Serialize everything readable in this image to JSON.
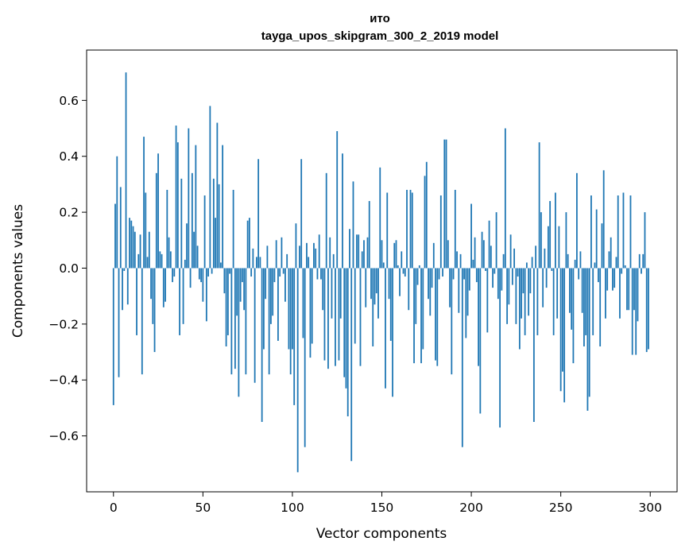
{
  "chart_data": {
    "type": "bar",
    "title": "ито",
    "subtitle": "tayga_upos_skipgram_300_2_2019 model",
    "xlabel": "Vector components",
    "ylabel": "Components values",
    "xlim": [
      -15,
      315
    ],
    "ylim": [
      -0.8,
      0.78
    ],
    "xticks": [
      0,
      50,
      100,
      150,
      200,
      250,
      300
    ],
    "xtick_labels": [
      "0",
      "50",
      "100",
      "150",
      "200",
      "250",
      "300"
    ],
    "yticks": [
      -0.6,
      -0.4,
      -0.2,
      0.0,
      0.2,
      0.4,
      0.6
    ],
    "ytick_labels": [
      "−0.6",
      "−0.4",
      "−0.2",
      "0.0",
      "0.2",
      "0.4",
      "0.6"
    ],
    "bar_color": "#1f77b4",
    "x": "0..299",
    "values": [
      -0.49,
      0.23,
      0.4,
      -0.39,
      0.29,
      -0.15,
      -0.01,
      0.7,
      -0.13,
      0.18,
      0.17,
      0.15,
      0.13,
      -0.24,
      0.05,
      0.12,
      -0.38,
      0.47,
      0.27,
      0.04,
      0.13,
      -0.11,
      -0.2,
      -0.3,
      0.34,
      0.41,
      0.06,
      0.05,
      -0.14,
      -0.12,
      0.28,
      0.11,
      0.06,
      -0.05,
      -0.03,
      0.51,
      0.45,
      -0.24,
      0.32,
      -0.2,
      0.03,
      0.16,
      0.5,
      -0.07,
      0.34,
      0.13,
      0.44,
      0.08,
      -0.04,
      -0.05,
      -0.12,
      0.26,
      -0.19,
      -0.03,
      0.58,
      -0.02,
      0.32,
      0.18,
      0.52,
      0.3,
      0.02,
      0.44,
      -0.09,
      -0.28,
      -0.24,
      -0.02,
      -0.38,
      0.28,
      -0.36,
      -0.17,
      -0.46,
      -0.12,
      -0.05,
      -0.15,
      -0.38,
      0.17,
      0.18,
      -0.03,
      0.07,
      -0.41,
      0.04,
      0.39,
      0.04,
      -0.55,
      -0.29,
      -0.11,
      0.08,
      -0.38,
      -0.2,
      -0.17,
      -0.05,
      0.1,
      -0.26,
      -0.03,
      0.11,
      -0.02,
      -0.12,
      0.05,
      -0.29,
      -0.38,
      -0.29,
      -0.49,
      0.16,
      -0.73,
      0.08,
      0.39,
      -0.25,
      -0.64,
      0.09,
      0.04,
      -0.32,
      -0.27,
      0.09,
      0.07,
      -0.04,
      0.12,
      -0.04,
      -0.15,
      -0.33,
      0.34,
      -0.36,
      0.11,
      -0.18,
      0.05,
      -0.35,
      0.49,
      -0.33,
      -0.18,
      0.41,
      -0.39,
      -0.43,
      -0.53,
      0.14,
      -0.69,
      0.31,
      -0.27,
      0.12,
      0.12,
      -0.35,
      0.06,
      0.1,
      -0.14,
      0.11,
      0.24,
      -0.11,
      -0.28,
      -0.13,
      -0.09,
      -0.18,
      0.36,
      0.1,
      0.02,
      -0.43,
      0.27,
      -0.11,
      -0.26,
      -0.46,
      0.09,
      0.1,
      0.01,
      -0.1,
      0.06,
      -0.02,
      -0.03,
      0.28,
      -0.15,
      0.28,
      0.27,
      -0.34,
      -0.2,
      -0.06,
      0.01,
      -0.34,
      -0.29,
      0.33,
      0.38,
      -0.11,
      -0.17,
      -0.07,
      0.09,
      -0.33,
      -0.35,
      -0.04,
      0.26,
      -0.03,
      0.46,
      0.46,
      0.1,
      -0.14,
      -0.38,
      -0.04,
      0.28,
      0.06,
      -0.16,
      0.05,
      -0.64,
      -0.04,
      -0.25,
      -0.17,
      -0.08,
      0.23,
      0.03,
      0.11,
      -0.05,
      -0.35,
      -0.52,
      0.13,
      0.1,
      -0.01,
      -0.23,
      0.17,
      0.08,
      -0.07,
      -0.02,
      0.2,
      -0.11,
      -0.57,
      -0.08,
      0.05,
      0.5,
      -0.2,
      -0.13,
      0.12,
      -0.06,
      0.07,
      -0.2,
      -0.03,
      -0.29,
      -0.18,
      -0.09,
      -0.24,
      0.02,
      -0.17,
      -0.09,
      0.04,
      -0.55,
      0.08,
      -0.24,
      0.45,
      0.2,
      -0.14,
      0.07,
      -0.07,
      0.15,
      0.24,
      -0.01,
      -0.24,
      0.27,
      -0.18,
      0.15,
      -0.44,
      -0.37,
      -0.48,
      0.2,
      0.05,
      -0.16,
      -0.22,
      -0.34,
      0.03,
      0.34,
      -0.04,
      0.06,
      -0.16,
      -0.28,
      -0.24,
      -0.51,
      -0.46,
      0.26,
      -0.24,
      0.02,
      0.21,
      -0.05,
      -0.28,
      0.16,
      0.35,
      -0.18,
      -0.08,
      0.06,
      0.11,
      -0.08,
      -0.07,
      0.04,
      0.26,
      -0.18,
      -0.02,
      0.27,
      0.01,
      -0.15,
      -0.15,
      0.26,
      -0.31,
      -0.15,
      -0.31,
      -0.19,
      0.05,
      -0.02,
      0.05,
      0.2,
      -0.3,
      -0.29
    ]
  }
}
